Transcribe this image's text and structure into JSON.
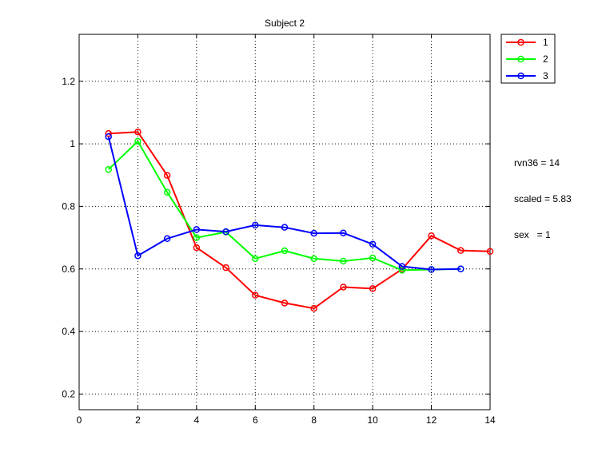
{
  "chart_data": {
    "type": "line",
    "title": "Subject 2",
    "xlabel": "",
    "ylabel": "",
    "xlim": [
      0,
      14
    ],
    "ylim": [
      0.15,
      1.35
    ],
    "x_ticks": [
      0,
      2,
      4,
      6,
      8,
      10,
      12,
      14
    ],
    "y_ticks": [
      0.2,
      0.4,
      0.6,
      0.8,
      1,
      1.2
    ],
    "x_tick_labels": [
      "0",
      "2",
      "4",
      "6",
      "8",
      "10",
      "12",
      "14"
    ],
    "y_tick_labels": [
      "0.2",
      "0.4",
      "0.6",
      "0.8",
      "1",
      "1.2"
    ],
    "grid": true,
    "legend_position": "outside-top-right",
    "marker": "circle",
    "series": [
      {
        "name": "1",
        "color": "#ff0000",
        "x": [
          1,
          2,
          3,
          4,
          5,
          6,
          7,
          8,
          9,
          10,
          11,
          12,
          13,
          14
        ],
        "y": [
          1.033,
          1.038,
          0.899,
          0.668,
          0.604,
          0.516,
          0.491,
          0.474,
          0.542,
          0.537,
          0.599,
          0.706,
          0.659,
          0.656
        ]
      },
      {
        "name": "2",
        "color": "#00ff00",
        "x": [
          1,
          2,
          3,
          4,
          5,
          6,
          7,
          8,
          9,
          10,
          11,
          12,
          13
        ],
        "y": [
          0.918,
          1.008,
          0.845,
          0.7,
          0.718,
          0.633,
          0.658,
          0.633,
          0.625,
          0.635,
          0.596,
          0.598,
          0.6
        ]
      },
      {
        "name": "3",
        "color": "#0000ff",
        "x": [
          1,
          2,
          3,
          4,
          5,
          6,
          7,
          8,
          9,
          10,
          11,
          12,
          13
        ],
        "y": [
          1.023,
          0.642,
          0.697,
          0.726,
          0.719,
          0.74,
          0.733,
          0.714,
          0.715,
          0.679,
          0.608,
          0.598,
          0.6
        ]
      }
    ],
    "annotations": [
      "rvn36 = 14",
      "scaled = 5.83",
      "sex   = 1"
    ]
  }
}
